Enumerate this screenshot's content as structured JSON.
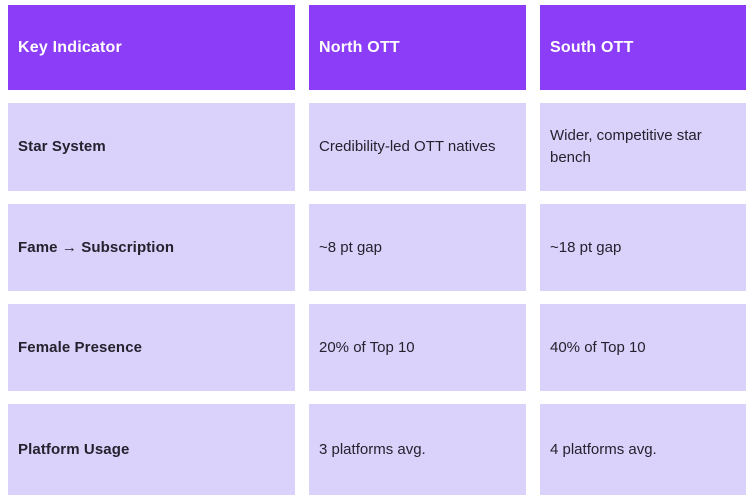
{
  "table": {
    "colors": {
      "header_bg": "#8C3DF7",
      "header_text": "#FFFFFF",
      "cell_bg": "#DAD2FA",
      "cell_text": "#26212E",
      "page_bg": "#FFFFFF"
    },
    "headers": {
      "indicator": "Key Indicator",
      "north": "North OTT",
      "south": "South OTT"
    },
    "rows": [
      {
        "indicator": "Star System",
        "north": "Credibility-led OTT natives",
        "south": "Wider, competitive star bench"
      },
      {
        "indicator": "Fame → Subscription",
        "north": "~8 pt gap",
        "south": "~18 pt gap"
      },
      {
        "indicator": "Female Presence",
        "north": "20% of Top 10",
        "south": "40% of Top 10"
      },
      {
        "indicator": "Platform Usage",
        "north": "3 platforms avg.",
        "south": "4 platforms avg."
      }
    ]
  }
}
